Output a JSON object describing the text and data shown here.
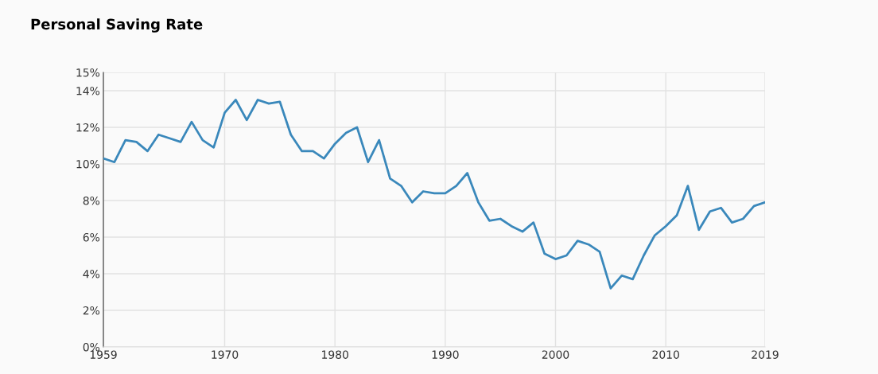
{
  "chart_data": {
    "type": "line",
    "title": "Personal Saving Rate",
    "x": [
      1959,
      1960,
      1961,
      1962,
      1963,
      1964,
      1965,
      1966,
      1967,
      1968,
      1969,
      1970,
      1971,
      1972,
      1973,
      1974,
      1975,
      1976,
      1977,
      1978,
      1979,
      1980,
      1981,
      1982,
      1983,
      1984,
      1985,
      1986,
      1987,
      1988,
      1989,
      1990,
      1991,
      1992,
      1993,
      1994,
      1995,
      1996,
      1997,
      1998,
      1999,
      2000,
      2001,
      2002,
      2003,
      2004,
      2005,
      2006,
      2007,
      2008,
      2009,
      2010,
      2011,
      2012,
      2013,
      2014,
      2015,
      2016,
      2017,
      2018,
      2019
    ],
    "series": [
      {
        "color": "#3a88bb",
        "values": [
          10.3,
          10.1,
          11.3,
          11.2,
          10.7,
          11.6,
          11.4,
          11.2,
          12.3,
          11.3,
          10.9,
          12.8,
          13.5,
          12.4,
          13.5,
          13.3,
          13.4,
          11.6,
          10.7,
          10.7,
          10.3,
          11.1,
          11.7,
          12.0,
          10.1,
          11.3,
          9.2,
          8.8,
          7.9,
          8.5,
          8.4,
          8.4,
          8.8,
          9.5,
          7.9,
          6.9,
          7.0,
          6.6,
          6.3,
          6.8,
          5.1,
          4.8,
          5.0,
          5.8,
          5.6,
          5.2,
          3.2,
          3.9,
          3.7,
          5.0,
          6.1,
          6.6,
          7.2,
          8.8,
          6.4,
          7.4,
          7.6,
          6.8,
          7.0,
          7.7,
          7.9
        ]
      }
    ],
    "xlim": [
      1959,
      2019
    ],
    "xticks": [
      1959,
      1970,
      1980,
      1990,
      2000,
      2010,
      2019
    ],
    "ylim": [
      0,
      15
    ],
    "yticks": [
      {
        "value": 0,
        "label": "0%"
      },
      {
        "value": 2,
        "label": "2%"
      },
      {
        "value": 4,
        "label": "4%"
      },
      {
        "value": 6,
        "label": "6%"
      },
      {
        "value": 8,
        "label": "8%"
      },
      {
        "value": 10,
        "label": "10%"
      },
      {
        "value": 12,
        "label": "12%"
      },
      {
        "value": 14,
        "label": "14%"
      },
      {
        "value": 15,
        "label": "15%"
      }
    ],
    "grid": true,
    "marker": "none",
    "line_style": "solid"
  }
}
